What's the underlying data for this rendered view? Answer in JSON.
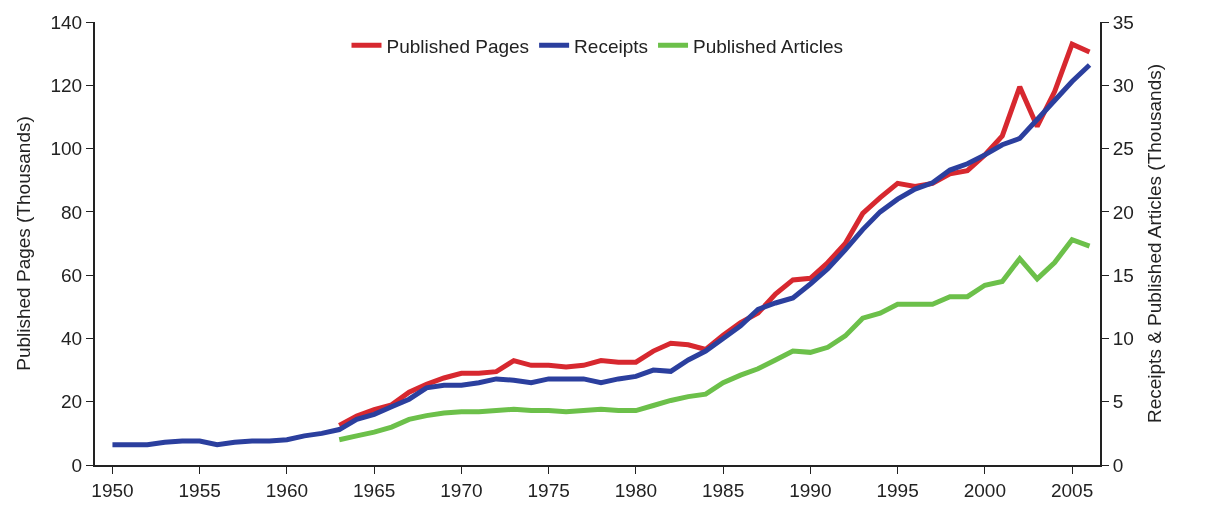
{
  "chart_data": {
    "type": "line",
    "x": [
      1950,
      1951,
      1952,
      1953,
      1954,
      1955,
      1956,
      1957,
      1958,
      1959,
      1960,
      1961,
      1962,
      1963,
      1964,
      1965,
      1966,
      1967,
      1968,
      1969,
      1970,
      1971,
      1972,
      1973,
      1974,
      1975,
      1976,
      1977,
      1978,
      1979,
      1980,
      1981,
      1982,
      1983,
      1984,
      1985,
      1986,
      1987,
      1988,
      1989,
      1990,
      1991,
      1992,
      1993,
      1994,
      1995,
      1996,
      1997,
      1998,
      1999,
      2000,
      2001,
      2002,
      2003,
      2004,
      2005,
      2006
    ],
    "series": [
      {
        "name": "Published Pages",
        "color": "#d7282f",
        "values": [
          null,
          null,
          null,
          null,
          null,
          null,
          null,
          null,
          null,
          null,
          null,
          null,
          null,
          12.5,
          15.5,
          17.5,
          19,
          23,
          25.5,
          27.5,
          29,
          29,
          29.5,
          33,
          31.5,
          31.5,
          31,
          31.5,
          33,
          32.5,
          32.5,
          36,
          38.5,
          38,
          36.5,
          41,
          45,
          48,
          54,
          58.5,
          59,
          64,
          70,
          79.5,
          84.5,
          89,
          88,
          89,
          92,
          93,
          98,
          104,
          119.5,
          107,
          118,
          133,
          130.5
        ]
      },
      {
        "name": "Receipts",
        "color": "#2b3f9e",
        "axis": "y2",
        "values": [
          1.6,
          1.6,
          1.6,
          1.8,
          1.9,
          1.9,
          1.6,
          1.8,
          1.9,
          1.9,
          2.0,
          2.3,
          2.5,
          2.8,
          3.6,
          4.0,
          4.6,
          5.2,
          6.1,
          6.3,
          6.3,
          6.5,
          6.8,
          6.7,
          6.5,
          6.8,
          6.8,
          6.8,
          6.5,
          6.8,
          7.0,
          7.5,
          7.4,
          8.3,
          9.0,
          10.0,
          11.0,
          12.3,
          12.8,
          13.2,
          14.3,
          15.5,
          17.0,
          18.6,
          20.0,
          21.0,
          21.8,
          22.3,
          23.3,
          23.8,
          24.5,
          25.3,
          25.8,
          27.3,
          28.8,
          30.3,
          31.6
        ]
      },
      {
        "name": "Published Articles",
        "color": "#6cc04a",
        "axis": "y2",
        "values": [
          null,
          null,
          null,
          null,
          null,
          null,
          null,
          null,
          null,
          null,
          null,
          null,
          null,
          2.0,
          2.3,
          2.6,
          3.0,
          3.6,
          3.9,
          4.1,
          4.2,
          4.2,
          4.3,
          4.4,
          4.3,
          4.3,
          4.2,
          4.3,
          4.4,
          4.3,
          4.3,
          4.7,
          5.1,
          5.4,
          5.6,
          6.5,
          7.1,
          7.6,
          8.3,
          9.0,
          8.9,
          9.3,
          10.2,
          11.6,
          12.0,
          12.7,
          12.7,
          12.7,
          13.3,
          13.3,
          14.2,
          14.5,
          16.3,
          14.7,
          16.0,
          17.8,
          17.3
        ]
      }
    ],
    "ylabel": "Published Pages (Thousands)",
    "y2label": "Receipts & Published Articles (Thousands)",
    "xlim": [
      1949,
      2006.6
    ],
    "xticks": [
      1950,
      1955,
      1960,
      1965,
      1970,
      1975,
      1980,
      1985,
      1990,
      1995,
      2000,
      2005
    ],
    "ylim": [
      0,
      140
    ],
    "yticks": [
      0,
      20,
      40,
      60,
      80,
      100,
      120,
      140
    ],
    "y2lim": [
      0,
      35
    ],
    "y2ticks": [
      0,
      5,
      10,
      15,
      20,
      25,
      30,
      35
    ],
    "legend": "top",
    "marker": "none",
    "line_style": "solid"
  }
}
